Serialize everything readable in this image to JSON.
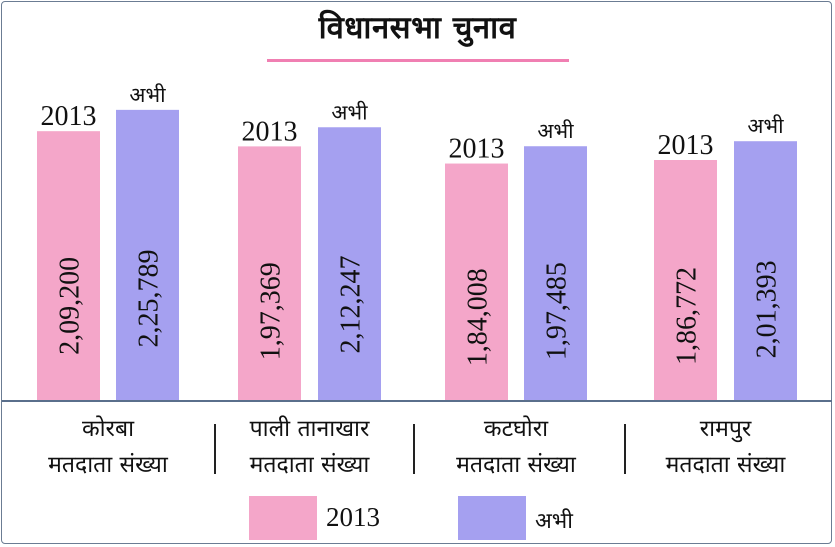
{
  "title": "विधानसभा चुनाव",
  "colors": {
    "series_2013": "#f4a6c9",
    "series_now": "#a5a0f0",
    "accent": "#f07fb2",
    "axis": "#5a6f8c"
  },
  "chart_data": {
    "type": "bar",
    "title": "विधानसभा चुनाव",
    "categories": [
      {
        "name": "कोरबा",
        "sub": "मतदाता संख्या"
      },
      {
        "name": "पाली तानाखार",
        "sub": "मतदाता संख्या"
      },
      {
        "name": "कटघोरा",
        "sub": "मतदाता संख्या"
      },
      {
        "name": "रामपुर",
        "sub": "मतदाता संख्या"
      }
    ],
    "series": [
      {
        "name": "2013",
        "values": [
          209200,
          197369,
          184008,
          186772
        ],
        "labels": [
          "2,09,200",
          "1,97,369",
          "1,84,008",
          "1,86,772"
        ]
      },
      {
        "name": "अभी",
        "values": [
          225789,
          212247,
          197485,
          201393
        ],
        "labels": [
          "2,25,789",
          "2,12,247",
          "1,97,485",
          "2,01,393"
        ]
      }
    ],
    "legend": {
      "position": "bottom",
      "items": [
        "2013",
        "अभी"
      ]
    }
  }
}
